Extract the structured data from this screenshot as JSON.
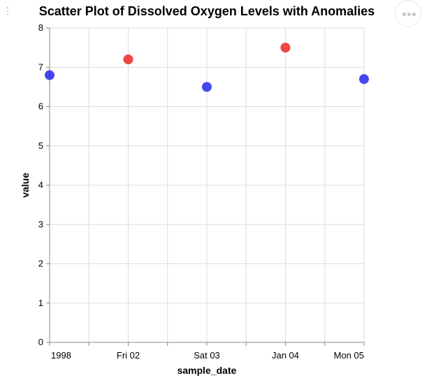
{
  "chart_data": {
    "type": "scatter",
    "title": "Scatter Plot of Dissolved Oxygen Levels with Anomalies",
    "xlabel": "sample_date",
    "ylabel": "value",
    "ylim": [
      0,
      8
    ],
    "yticks": [
      0,
      1,
      2,
      3,
      4,
      5,
      6,
      7,
      8
    ],
    "xlim": [
      "1998-01-01",
      "1998-01-05"
    ],
    "x_tick_labels": [
      "1998",
      "Fri 02",
      "Sat 03",
      "Jan 04",
      "Mon 05"
    ],
    "grid": true,
    "points": [
      {
        "x": "1998-01-01",
        "y": 6.8,
        "anomaly": false
      },
      {
        "x": "1998-01-02",
        "y": 7.2,
        "anomaly": true
      },
      {
        "x": "1998-01-03",
        "y": 6.5,
        "anomaly": false
      },
      {
        "x": "1998-01-04",
        "y": 7.5,
        "anomaly": true
      },
      {
        "x": "1998-01-05",
        "y": 6.7,
        "anomaly": false
      }
    ],
    "colors": {
      "normal": "#3333ee",
      "anomaly": "#ee3333"
    }
  }
}
